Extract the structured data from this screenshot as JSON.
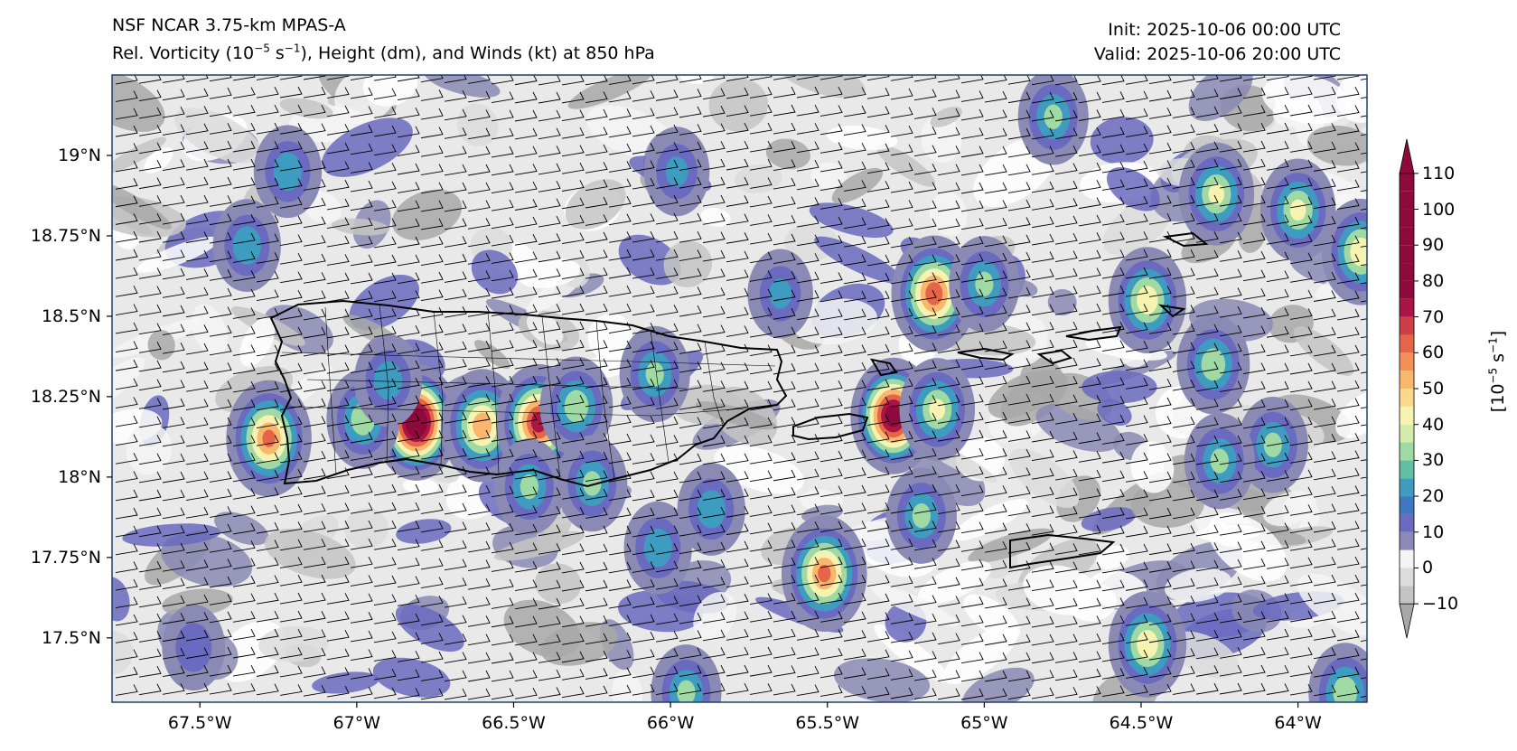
{
  "header": {
    "model": "NSF NCAR 3.75-km MPAS-A",
    "field_prefix": "Rel. Vorticity (10",
    "field_exp": "−5",
    "field_mid": " s",
    "field_exp2": "−1",
    "field_suffix": "), Height (dm), and Winds (kt) at 850 hPa",
    "init": "Init: 2025-10-06 00:00 UTC",
    "valid": "Valid: 2025-10-06 20:00 UTC"
  },
  "axes": {
    "lat_labels": [
      "19°N",
      "18.75°N",
      "18.5°N",
      "18.25°N",
      "18°N",
      "17.75°N",
      "17.5°N"
    ],
    "lon_labels": [
      "67.5°W",
      "67°W",
      "66.5°W",
      "66°W",
      "65.5°W",
      "65°W",
      "64.5°W",
      "64°W"
    ],
    "lat_values": [
      19.0,
      18.75,
      18.5,
      18.25,
      18.0,
      17.75,
      17.5
    ],
    "lon_values": [
      -67.5,
      -67.0,
      -66.5,
      -66.0,
      -65.5,
      -65.0,
      -64.5,
      -64.0
    ],
    "extent": {
      "lon_min": -67.78,
      "lon_max": -63.78,
      "lat_min": 17.3,
      "lat_max": 19.25
    }
  },
  "colorbar": {
    "ticks": [
      "110",
      "100",
      "90",
      "80",
      "70",
      "60",
      "50",
      "40",
      "30",
      "20",
      "10",
      "0",
      "−10"
    ],
    "tick_values": [
      110,
      100,
      90,
      80,
      70,
      60,
      50,
      40,
      30,
      20,
      10,
      0,
      -10
    ],
    "unit_prefix": "[10",
    "unit_exp": "−5",
    "unit_mid": " s",
    "unit_exp2": "−1",
    "unit_suffix": "]",
    "colors": [
      "#a8a8a8",
      "#c4c4c4",
      "#dcdcdc",
      "#f4f4f4",
      "#8a8ab4",
      "#6a6ac0",
      "#3f78c0",
      "#3d9cbf",
      "#62bfa6",
      "#9fd9a4",
      "#d4ecaa",
      "#f6f2b0",
      "#fcd98a",
      "#fbb66e",
      "#f58f58",
      "#e66448",
      "#cf3d45",
      "#ab1545",
      "#8e0a3c"
    ],
    "extend": "both"
  },
  "vorticity_blobs": [
    {
      "lon": -67.28,
      "lat": 18.12,
      "v": 60
    },
    {
      "lon": -67.22,
      "lat": 18.95,
      "v": 25
    },
    {
      "lon": -67.35,
      "lat": 18.72,
      "v": 25
    },
    {
      "lon": -66.81,
      "lat": 18.17,
      "v": 100
    },
    {
      "lon": -66.98,
      "lat": 18.18,
      "v": 35
    },
    {
      "lon": -66.6,
      "lat": 18.16,
      "v": 55
    },
    {
      "lon": -66.42,
      "lat": 18.17,
      "v": 75
    },
    {
      "lon": -66.3,
      "lat": 18.22,
      "v": 35
    },
    {
      "lon": -66.45,
      "lat": 17.97,
      "v": 30
    },
    {
      "lon": -66.25,
      "lat": 17.98,
      "v": 30
    },
    {
      "lon": -66.9,
      "lat": 18.3,
      "v": 25
    },
    {
      "lon": -66.05,
      "lat": 18.32,
      "v": 30
    },
    {
      "lon": -65.87,
      "lat": 17.9,
      "v": 25
    },
    {
      "lon": -65.51,
      "lat": 17.7,
      "v": 60
    },
    {
      "lon": -65.29,
      "lat": 18.19,
      "v": 90
    },
    {
      "lon": -65.16,
      "lat": 18.57,
      "v": 65
    },
    {
      "lon": -65.15,
      "lat": 18.21,
      "v": 40
    },
    {
      "lon": -65.2,
      "lat": 17.88,
      "v": 30
    },
    {
      "lon": -65.0,
      "lat": 18.6,
      "v": 30
    },
    {
      "lon": -64.48,
      "lat": 17.48,
      "v": 45
    },
    {
      "lon": -64.48,
      "lat": 18.55,
      "v": 45
    },
    {
      "lon": -64.27,
      "lat": 18.35,
      "v": 35
    },
    {
      "lon": -64.26,
      "lat": 18.88,
      "v": 40
    },
    {
      "lon": -64.0,
      "lat": 18.83,
      "v": 40
    },
    {
      "lon": -64.08,
      "lat": 18.1,
      "v": 30
    },
    {
      "lon": -64.25,
      "lat": 18.05,
      "v": 30
    },
    {
      "lon": -64.78,
      "lat": 19.12,
      "v": 30
    },
    {
      "lon": -63.8,
      "lat": 18.7,
      "v": 45
    },
    {
      "lon": -63.85,
      "lat": 17.33,
      "v": 35
    },
    {
      "lon": -65.95,
      "lat": 17.33,
      "v": 30
    },
    {
      "lon": -65.65,
      "lat": 18.57,
      "v": 20
    },
    {
      "lon": -65.98,
      "lat": 18.95,
      "v": 20
    },
    {
      "lon": -67.52,
      "lat": 17.47,
      "v": 15
    },
    {
      "lon": -66.04,
      "lat": 17.78,
      "v": 25
    }
  ],
  "wind": {
    "speed_kt": 20,
    "direction_from_deg": 95
  }
}
